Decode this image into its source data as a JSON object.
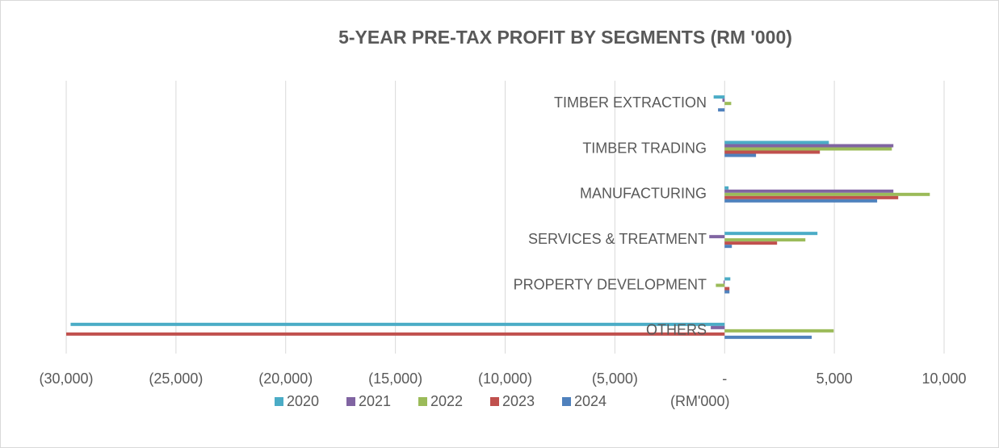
{
  "chart_data": {
    "type": "barh",
    "title": "5-YEAR PRE-TAX PROFIT BY SEGMENTS (RM '000)",
    "categories": [
      "TIMBER EXTRACTION",
      "TIMBER TRADING",
      "MANUFACTURING",
      "SERVICES & TREATMENT",
      "PROPERTY DEVELOPMENT",
      "OTHERS"
    ],
    "series": [
      {
        "name": "2020",
        "color": "#4bacc6",
        "values": [
          -500,
          4750,
          180,
          4230,
          260,
          -29800
        ]
      },
      {
        "name": "2021",
        "color": "#8064a2",
        "values": [
          -100,
          7690,
          7690,
          -700,
          -50,
          -630
        ]
      },
      {
        "name": "2022",
        "color": "#9bbb59",
        "values": [
          300,
          7620,
          9350,
          3680,
          -400,
          4970
        ]
      },
      {
        "name": "2023",
        "color": "#c0504d",
        "values": [
          0,
          4340,
          7910,
          2390,
          220,
          -30000
        ]
      },
      {
        "name": "2024",
        "color": "#4f81bd",
        "values": [
          -300,
          1430,
          6950,
          330,
          220,
          3970
        ]
      }
    ],
    "legend_note": "(RM'000)",
    "xlim": [
      -30000,
      10000
    ],
    "xticks": [
      {
        "value": -30000,
        "label": "(30,000)"
      },
      {
        "value": -25000,
        "label": "(25,000)"
      },
      {
        "value": -20000,
        "label": "(20,000)"
      },
      {
        "value": -15000,
        "label": "(15,000)"
      },
      {
        "value": -10000,
        "label": "(10,000)"
      },
      {
        "value": -5000,
        "label": "(5,000)"
      },
      {
        "value": 0,
        "label": "-"
      },
      {
        "value": 5000,
        "label": "5,000"
      },
      {
        "value": 10000,
        "label": "10,000"
      }
    ],
    "grid": true,
    "legend": "bottom"
  }
}
